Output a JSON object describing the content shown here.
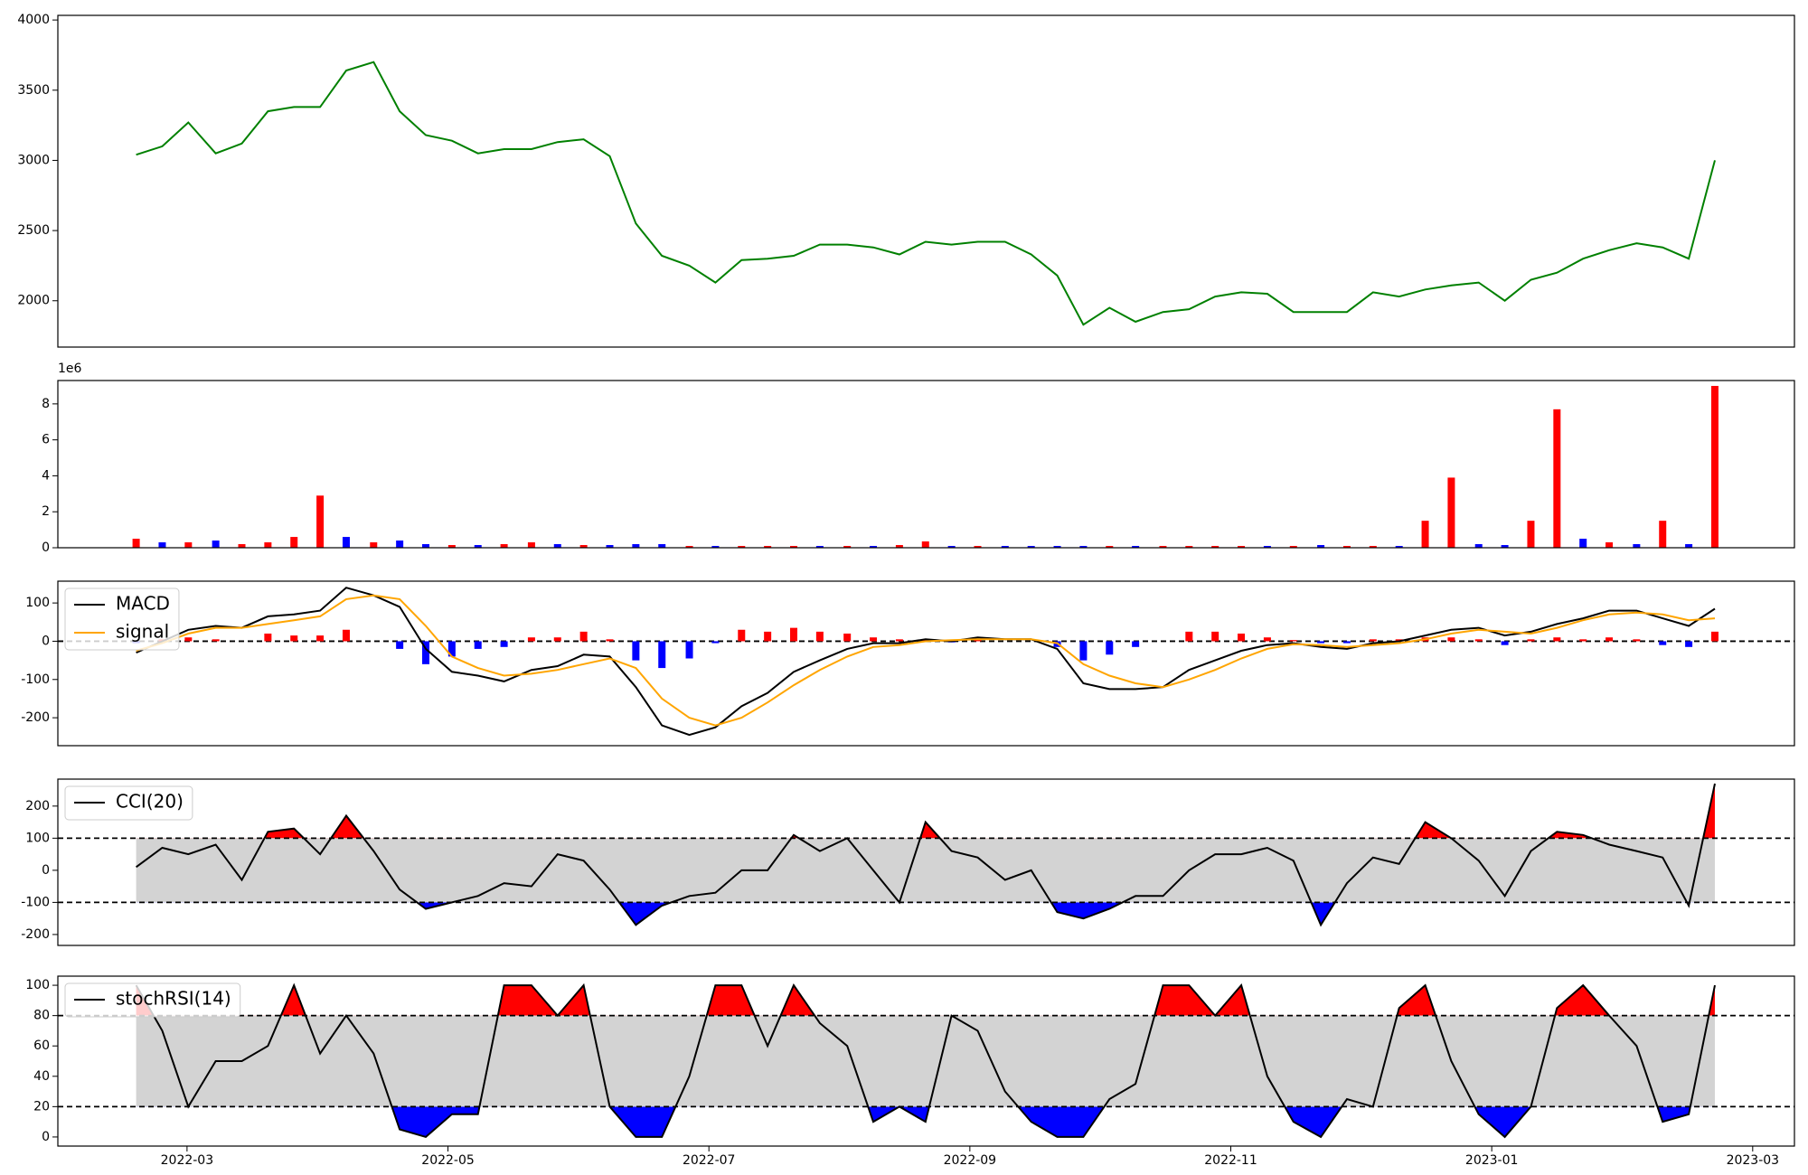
{
  "chart_data": [
    {
      "type": "line",
      "xlim": [
        1.01,
        14.32
      ],
      "ylim": [
        1670,
        4033
      ],
      "yticks": [
        2000,
        2500,
        3000,
        3500,
        4000
      ],
      "x": [
        1.61,
        1.81,
        2.01,
        2.22,
        2.42,
        2.62,
        2.82,
        3.02,
        3.22,
        3.43,
        3.63,
        3.83,
        4.03,
        4.23,
        4.43,
        4.64,
        4.84,
        5.04,
        5.24,
        5.44,
        5.64,
        5.85,
        6.05,
        6.25,
        6.45,
        6.65,
        6.85,
        7.06,
        7.26,
        7.46,
        7.66,
        7.86,
        8.06,
        8.27,
        8.47,
        8.67,
        8.87,
        9.07,
        9.27,
        9.48,
        9.68,
        9.88,
        10.08,
        10.28,
        10.48,
        10.69,
        10.89,
        11.09,
        11.29,
        11.49,
        11.69,
        11.9,
        12.1,
        12.3,
        12.5,
        12.7,
        12.9,
        13.11,
        13.31,
        13.51,
        13.71
      ],
      "series": [
        {
          "color": "green",
          "values": [
            3040,
            3100,
            3270,
            3050,
            3120,
            3350,
            3380,
            3380,
            3640,
            3700,
            3350,
            3180,
            3140,
            3050,
            3080,
            3080,
            3130,
            3150,
            3030,
            2550,
            2320,
            2250,
            2130,
            2290,
            2300,
            2320,
            2400,
            2400,
            2380,
            2330,
            2420,
            2400,
            2420,
            2420,
            2330,
            2180,
            1830,
            1950,
            1850,
            1920,
            1940,
            2030,
            2060,
            2050,
            1920,
            1920,
            1920,
            2060,
            2030,
            2080,
            2110,
            2130,
            2000,
            2150,
            2200,
            2300,
            2360,
            2410,
            2380,
            2300,
            3000
          ]
        }
      ]
    },
    {
      "type": "bar",
      "xlim": [
        1.01,
        14.32
      ],
      "ylim": [
        0,
        9.3
      ],
      "yticks": [
        0,
        2,
        4,
        6,
        8
      ],
      "offset_label": "1e6",
      "x": [
        1.61,
        1.81,
        2.01,
        2.22,
        2.42,
        2.62,
        2.82,
        3.02,
        3.22,
        3.43,
        3.63,
        3.83,
        4.03,
        4.23,
        4.43,
        4.64,
        4.84,
        5.04,
        5.24,
        5.44,
        5.64,
        5.85,
        6.05,
        6.25,
        6.45,
        6.65,
        6.85,
        7.06,
        7.26,
        7.46,
        7.66,
        7.86,
        8.06,
        8.27,
        8.47,
        8.67,
        8.87,
        9.07,
        9.27,
        9.48,
        9.68,
        9.88,
        10.08,
        10.28,
        10.48,
        10.69,
        10.89,
        11.09,
        11.29,
        11.49,
        11.69,
        11.9,
        12.1,
        12.3,
        12.5,
        12.7,
        12.9,
        13.11,
        13.31,
        13.51,
        13.71
      ],
      "series": [
        {
          "values": [
            0.5,
            0.3,
            0.3,
            0.4,
            0.2,
            0.3,
            0.6,
            2.9,
            0.6,
            0.3,
            0.4,
            0.2,
            0.15,
            0.15,
            0.2,
            0.3,
            0.2,
            0.15,
            0.15,
            0.2,
            0.2,
            0.1,
            0.1,
            0.1,
            0.1,
            0.1,
            0.1,
            0.1,
            0.1,
            0.15,
            0.35,
            0.1,
            0.1,
            0.1,
            0.1,
            0.1,
            0.1,
            0.1,
            0.1,
            0.1,
            0.1,
            0.1,
            0.1,
            0.1,
            0.1,
            0.15,
            0.1,
            0.1,
            0.1,
            1.5,
            3.9,
            0.2,
            0.15,
            1.5,
            7.7,
            0.5,
            0.3,
            0.2,
            1.5,
            0.2,
            9.0
          ],
          "colors": [
            "red",
            "blue",
            "red",
            "blue",
            "red",
            "red",
            "red",
            "red",
            "blue",
            "red",
            "blue",
            "blue",
            "red",
            "blue",
            "red",
            "red",
            "blue",
            "red",
            "blue",
            "blue",
            "blue",
            "red",
            "blue",
            "red",
            "red",
            "red",
            "blue",
            "red",
            "blue",
            "red",
            "red",
            "blue",
            "red",
            "blue",
            "blue",
            "blue",
            "blue",
            "red",
            "blue",
            "red",
            "red",
            "red",
            "red",
            "blue",
            "red",
            "blue",
            "red",
            "red",
            "blue",
            "red",
            "red",
            "blue",
            "blue",
            "red",
            "red",
            "blue",
            "red",
            "blue",
            "red",
            "blue",
            "red"
          ]
        }
      ]
    },
    {
      "type": "line",
      "xlim": [
        1.01,
        14.32
      ],
      "ylim": [
        -273,
        157
      ],
      "yticks": [
        -200,
        -100,
        0,
        100
      ],
      "hline": 0,
      "legend": "upper left",
      "x": [
        1.61,
        1.81,
        2.01,
        2.22,
        2.42,
        2.62,
        2.82,
        3.02,
        3.22,
        3.43,
        3.63,
        3.83,
        4.03,
        4.23,
        4.43,
        4.64,
        4.84,
        5.04,
        5.24,
        5.44,
        5.64,
        5.85,
        6.05,
        6.25,
        6.45,
        6.65,
        6.85,
        7.06,
        7.26,
        7.46,
        7.66,
        7.86,
        8.06,
        8.27,
        8.47,
        8.67,
        8.87,
        9.07,
        9.27,
        9.48,
        9.68,
        9.88,
        10.08,
        10.28,
        10.48,
        10.69,
        10.89,
        11.09,
        11.29,
        11.49,
        11.69,
        11.9,
        12.1,
        12.3,
        12.5,
        12.7,
        12.9,
        13.11,
        13.31,
        13.51,
        13.71
      ],
      "series": [
        {
          "type": "bar",
          "color": "red",
          "negative_color": "blue",
          "values": [
            -5,
            5,
            10,
            5,
            0,
            20,
            15,
            15,
            30,
            0,
            -20,
            -60,
            -40,
            -20,
            -15,
            10,
            10,
            25,
            5,
            -50,
            -70,
            -45,
            -5,
            30,
            25,
            35,
            25,
            20,
            10,
            5,
            5,
            -3,
            5,
            0,
            0,
            -15,
            -50,
            -35,
            -15,
            0,
            25,
            25,
            20,
            10,
            3,
            -5,
            -5,
            5,
            5,
            10,
            10,
            5,
            -10,
            5,
            10,
            5,
            10,
            5,
            -10,
            -15,
            25
          ]
        },
        {
          "name": "MACD",
          "color": "black",
          "values": [
            -30,
            0,
            30,
            40,
            35,
            65,
            70,
            80,
            140,
            120,
            90,
            -20,
            -80,
            -90,
            -105,
            -75,
            -65,
            -35,
            -40,
            -120,
            -220,
            -245,
            -225,
            -170,
            -135,
            -80,
            -50,
            -20,
            -5,
            -5,
            5,
            0,
            10,
            5,
            5,
            -20,
            -110,
            -125,
            -125,
            -120,
            -75,
            -50,
            -25,
            -10,
            -5,
            -15,
            -20,
            -5,
            0,
            15,
            30,
            35,
            15,
            25,
            45,
            60,
            80,
            80,
            60,
            40,
            85
          ]
        },
        {
          "name": "signal",
          "color": "orange",
          "values": [
            -25,
            -5,
            20,
            35,
            35,
            45,
            55,
            65,
            110,
            120,
            110,
            40,
            -40,
            -70,
            -90,
            -85,
            -75,
            -60,
            -45,
            -70,
            -150,
            -200,
            -220,
            -200,
            -160,
            -115,
            -75,
            -40,
            -15,
            -10,
            0,
            3,
            5,
            5,
            5,
            -5,
            -60,
            -90,
            -110,
            -120,
            -100,
            -75,
            -45,
            -20,
            -8,
            -10,
            -15,
            -10,
            -5,
            5,
            20,
            30,
            25,
            20,
            35,
            55,
            70,
            75,
            70,
            55,
            60
          ]
        }
      ]
    },
    {
      "type": "band",
      "xlim": [
        1.01,
        14.32
      ],
      "ylim": [
        -234,
        284
      ],
      "yticks": [
        -200,
        -100,
        0,
        100,
        200
      ],
      "upper": 100,
      "lower": -100,
      "band_color": "lightgray",
      "above_color": "red",
      "below_color": "blue",
      "legend": "upper left",
      "x": [
        1.61,
        1.81,
        2.01,
        2.22,
        2.42,
        2.62,
        2.82,
        3.02,
        3.22,
        3.43,
        3.63,
        3.83,
        4.03,
        4.23,
        4.43,
        4.64,
        4.84,
        5.04,
        5.24,
        5.44,
        5.64,
        5.85,
        6.05,
        6.25,
        6.45,
        6.65,
        6.85,
        7.06,
        7.26,
        7.46,
        7.66,
        7.86,
        8.06,
        8.27,
        8.47,
        8.67,
        8.87,
        9.07,
        9.27,
        9.48,
        9.68,
        9.88,
        10.08,
        10.28,
        10.48,
        10.69,
        10.89,
        11.09,
        11.29,
        11.49,
        11.69,
        11.9,
        12.1,
        12.3,
        12.5,
        12.7,
        12.9,
        13.11,
        13.31,
        13.51,
        13.71
      ],
      "series": [
        {
          "name": "CCI(20)",
          "color": "black",
          "values": [
            10,
            70,
            50,
            80,
            -30,
            120,
            130,
            50,
            170,
            60,
            -60,
            -120,
            -100,
            -80,
            -40,
            -50,
            50,
            30,
            -60,
            -170,
            -110,
            -80,
            -70,
            0,
            0,
            110,
            60,
            100,
            0,
            -100,
            150,
            60,
            40,
            -30,
            0,
            -130,
            -150,
            -120,
            -80,
            -80,
            0,
            50,
            50,
            70,
            30,
            -170,
            -40,
            40,
            20,
            150,
            100,
            30,
            -80,
            60,
            120,
            110,
            80,
            60,
            40,
            -110,
            270
          ]
        }
      ]
    },
    {
      "type": "band",
      "xlim": [
        1.01,
        14.32
      ],
      "ylim": [
        -6,
        106
      ],
      "yticks": [
        0,
        20,
        40,
        60,
        80,
        100
      ],
      "upper": 80,
      "lower": 20,
      "band_color": "lightgray",
      "above_color": "red",
      "below_color": "blue",
      "legend": "upper left",
      "xticks": [
        {
          "value": 2,
          "label": "2022-03"
        },
        {
          "value": 4,
          "label": "2022-05"
        },
        {
          "value": 6,
          "label": "2022-07"
        },
        {
          "value": 8,
          "label": "2022-09"
        },
        {
          "value": 10,
          "label": "2022-11"
        },
        {
          "value": 12,
          "label": "2023-01"
        },
        {
          "value": 14,
          "label": "2023-03"
        }
      ],
      "x": [
        1.61,
        1.81,
        2.01,
        2.22,
        2.42,
        2.62,
        2.82,
        3.02,
        3.22,
        3.43,
        3.63,
        3.83,
        4.03,
        4.23,
        4.43,
        4.64,
        4.84,
        5.04,
        5.24,
        5.44,
        5.64,
        5.85,
        6.05,
        6.25,
        6.45,
        6.65,
        6.85,
        7.06,
        7.26,
        7.46,
        7.66,
        7.86,
        8.06,
        8.27,
        8.47,
        8.67,
        8.87,
        9.07,
        9.27,
        9.48,
        9.68,
        9.88,
        10.08,
        10.28,
        10.48,
        10.69,
        10.89,
        11.09,
        11.29,
        11.49,
        11.69,
        11.9,
        12.1,
        12.3,
        12.5,
        12.7,
        12.9,
        13.11,
        13.31,
        13.51,
        13.71
      ],
      "series": [
        {
          "name": "stochRSI(14)",
          "color": "black",
          "values": [
            100,
            70,
            20,
            50,
            50,
            60,
            100,
            55,
            80,
            55,
            5,
            0,
            15,
            15,
            100,
            100,
            80,
            100,
            20,
            0,
            0,
            40,
            100,
            100,
            60,
            100,
            75,
            60,
            10,
            20,
            10,
            80,
            70,
            30,
            10,
            0,
            0,
            25,
            35,
            100,
            100,
            80,
            100,
            40,
            10,
            0,
            25,
            20,
            85,
            100,
            50,
            15,
            0,
            20,
            85,
            100,
            80,
            60,
            10,
            15,
            100
          ]
        }
      ]
    }
  ]
}
